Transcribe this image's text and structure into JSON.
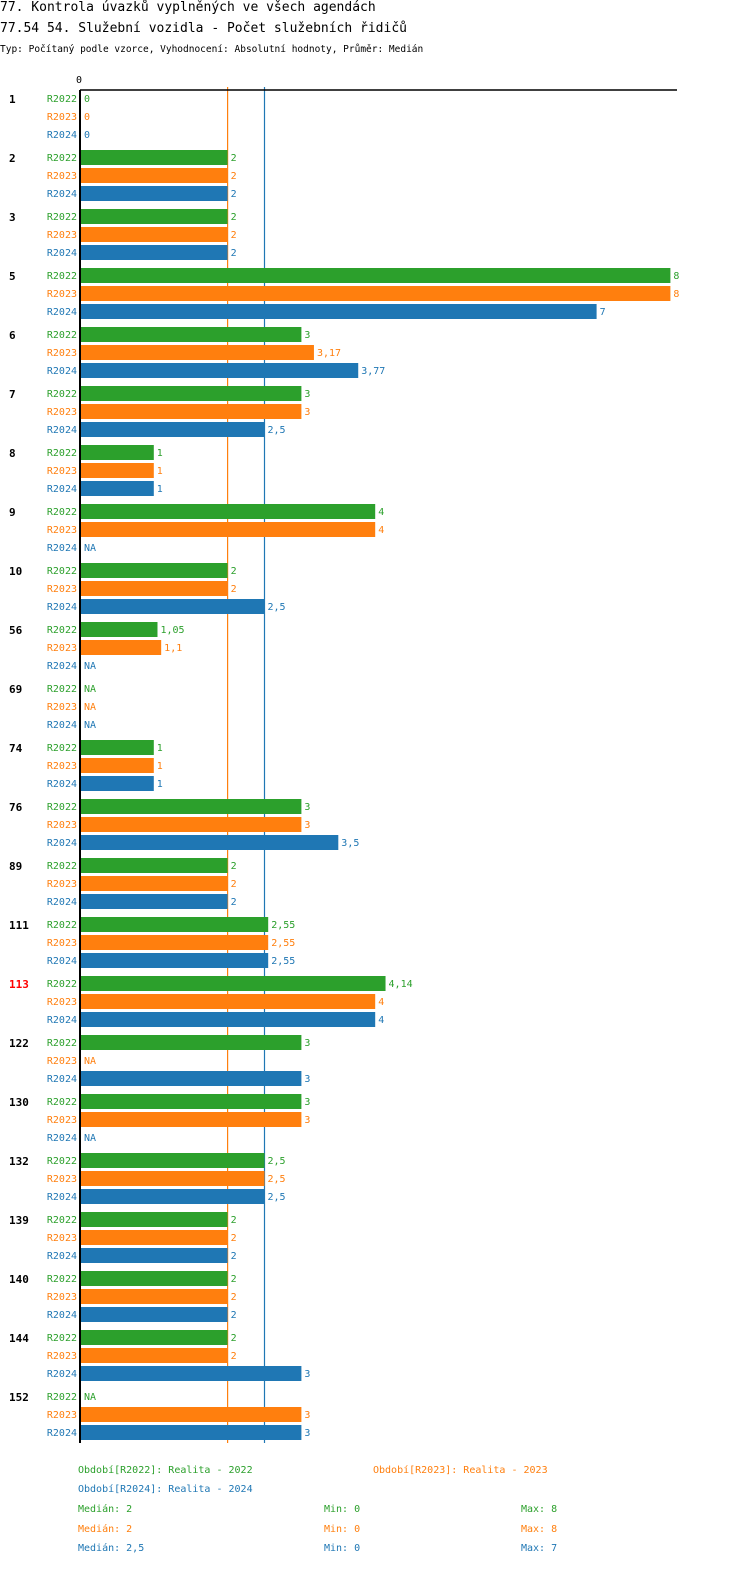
{
  "header": {
    "title1": "77. Kontrola úvazků vyplněných ve všech agendách",
    "title2": "77.54 54. Služební vozidla - Počet služebních řidičů",
    "subtitle": "Typ: Počítaný podle vzorce, Vyhodnocení: Absolutní hodnoty, Průměr: Medián"
  },
  "colors": {
    "R2022": "#2ca02c",
    "R2023": "#ff7f0e",
    "R2024": "#1f77b4",
    "highlight": "#ff0000"
  },
  "chart_data": {
    "type": "bar",
    "orientation": "horizontal",
    "x_axis_tick": "0",
    "xlim": [
      0,
      8
    ],
    "series_names": [
      "R2022",
      "R2023",
      "R2024"
    ],
    "groups": [
      {
        "label": "1",
        "highlight": false,
        "values": [
          0,
          0,
          0
        ],
        "labels": [
          "0",
          "0",
          "0"
        ]
      },
      {
        "label": "2",
        "highlight": false,
        "values": [
          2,
          2,
          2
        ],
        "labels": [
          "2",
          "2",
          "2"
        ]
      },
      {
        "label": "3",
        "highlight": false,
        "values": [
          2,
          2,
          2
        ],
        "labels": [
          "2",
          "2",
          "2"
        ]
      },
      {
        "label": "5",
        "highlight": false,
        "values": [
          8,
          8,
          7
        ],
        "labels": [
          "8",
          "8",
          "7"
        ]
      },
      {
        "label": "6",
        "highlight": false,
        "values": [
          3,
          3.17,
          3.77
        ],
        "labels": [
          "3",
          "3,17",
          "3,77"
        ]
      },
      {
        "label": "7",
        "highlight": false,
        "values": [
          3,
          3,
          2.5
        ],
        "labels": [
          "3",
          "3",
          "2,5"
        ]
      },
      {
        "label": "8",
        "highlight": false,
        "values": [
          1,
          1,
          1
        ],
        "labels": [
          "1",
          "1",
          "1"
        ]
      },
      {
        "label": "9",
        "highlight": false,
        "values": [
          4,
          4,
          null
        ],
        "labels": [
          "4",
          "4",
          "NA"
        ]
      },
      {
        "label": "10",
        "highlight": false,
        "values": [
          2,
          2,
          2.5
        ],
        "labels": [
          "2",
          "2",
          "2,5"
        ]
      },
      {
        "label": "56",
        "highlight": false,
        "values": [
          1.05,
          1.1,
          null
        ],
        "labels": [
          "1,05",
          "1,1",
          "NA"
        ]
      },
      {
        "label": "69",
        "highlight": false,
        "values": [
          null,
          null,
          null
        ],
        "labels": [
          "NA",
          "NA",
          "NA"
        ]
      },
      {
        "label": "74",
        "highlight": false,
        "values": [
          1,
          1,
          1
        ],
        "labels": [
          "1",
          "1",
          "1"
        ]
      },
      {
        "label": "76",
        "highlight": false,
        "values": [
          3,
          3,
          3.5
        ],
        "labels": [
          "3",
          "3",
          "3,5"
        ]
      },
      {
        "label": "89",
        "highlight": false,
        "values": [
          2,
          2,
          2
        ],
        "labels": [
          "2",
          "2",
          "2"
        ]
      },
      {
        "label": "111",
        "highlight": false,
        "values": [
          2.55,
          2.55,
          2.55
        ],
        "labels": [
          "2,55",
          "2,55",
          "2,55"
        ]
      },
      {
        "label": "113",
        "highlight": true,
        "values": [
          4.14,
          4,
          4
        ],
        "labels": [
          "4,14",
          "4",
          "4"
        ]
      },
      {
        "label": "122",
        "highlight": false,
        "values": [
          3,
          null,
          3
        ],
        "labels": [
          "3",
          "NA",
          "3"
        ]
      },
      {
        "label": "130",
        "highlight": false,
        "values": [
          3,
          3,
          null
        ],
        "labels": [
          "3",
          "3",
          "NA"
        ]
      },
      {
        "label": "132",
        "highlight": false,
        "values": [
          2.5,
          2.5,
          2.5
        ],
        "labels": [
          "2,5",
          "2,5",
          "2,5"
        ]
      },
      {
        "label": "139",
        "highlight": false,
        "values": [
          2,
          2,
          2
        ],
        "labels": [
          "2",
          "2",
          "2"
        ]
      },
      {
        "label": "140",
        "highlight": false,
        "values": [
          2,
          2,
          2
        ],
        "labels": [
          "2",
          "2",
          "2"
        ]
      },
      {
        "label": "144",
        "highlight": false,
        "values": [
          2,
          2,
          3
        ],
        "labels": [
          "2",
          "2",
          "3"
        ]
      },
      {
        "label": "152",
        "highlight": false,
        "values": [
          null,
          3,
          3
        ],
        "labels": [
          "NA",
          "3",
          "3"
        ]
      }
    ],
    "median_lines": [
      {
        "series": "R2023",
        "value": 2
      },
      {
        "series": "R2024",
        "value": 2.5
      }
    ]
  },
  "legend": {
    "items": [
      {
        "series": "R2022",
        "text": "Období[R2022]: Realita - 2022"
      },
      {
        "series": "R2023",
        "text": "Období[R2023]: Realita - 2023"
      },
      {
        "series": "R2024",
        "text": "Období[R2024]: Realita - 2024"
      }
    ],
    "stats": [
      {
        "series": "R2022",
        "median": "Medián: 2",
        "min": "Min: 0",
        "max": "Max: 8"
      },
      {
        "series": "R2023",
        "median": "Medián: 2",
        "min": "Min: 0",
        "max": "Max: 8"
      },
      {
        "series": "R2024",
        "median": "Medián: 2,5",
        "min": "Min: 0",
        "max": "Max: 7"
      }
    ]
  }
}
